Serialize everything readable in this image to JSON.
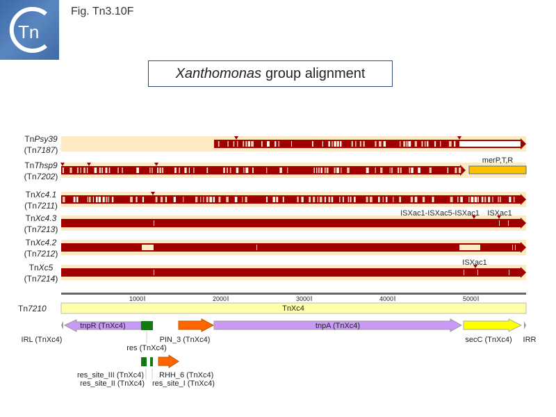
{
  "header": {
    "figure_label": "Fig. Tn3.10F",
    "logo_text": "Tn"
  },
  "title": {
    "italic": "Xanthomonas",
    "rest": "group alignment"
  },
  "tracks": [
    {
      "prefix": "Tn",
      "name": "Psy39",
      "id_prefix": "(Tn",
      "id": "7187",
      "id_suffix": ")"
    },
    {
      "prefix": "Tn",
      "name": "Thsp9",
      "id_prefix": "(Tn",
      "id": "7202",
      "id_suffix": ")"
    },
    {
      "prefix": "Tn",
      "name": "Xc4.1",
      "id_prefix": "(Tn",
      "id": "7211",
      "id_suffix": ")"
    },
    {
      "prefix": "Tn",
      "name": "Xc4.3",
      "id_prefix": "(Tn",
      "id": "7213",
      "id_suffix": ")"
    },
    {
      "prefix": "Tn",
      "name": "Xc4.2",
      "id_prefix": "(Tn",
      "id": "7212",
      "id_suffix": ")"
    },
    {
      "prefix": "Tn",
      "name": "Xc5",
      "id_prefix": "(Tn",
      "id": "7214",
      "id_suffix": ")"
    }
  ],
  "annotations": {
    "merPTR": "merP,T,R",
    "isxac_cluster": "ISXac1-ISXac5-ISXac1",
    "isxac1_a": "ISXac1",
    "isxac1_b": "ISXac1"
  },
  "ruler": {
    "ticks": [
      "1000",
      "2000",
      "3000",
      "4000",
      "5000"
    ]
  },
  "reference": {
    "prefix": "Tn",
    "id": "7210",
    "bar_label": "TnXc4"
  },
  "features": {
    "tnpR": "tnpR (TnXc4)",
    "tnpA": "tnpA (TnXc4)",
    "PIN_3": "PIN_3 (TnXc4)",
    "res": "res (TnXc4)",
    "IRL": "IRL (TnXc4)",
    "IRR": "IRR",
    "secC": "secC (TnXc4)",
    "res_site_III": "res_site_III (TnXc4)",
    "res_site_II": "res_site_II (TnXc4)",
    "RHH_6": "RHH_6 (TnXc4)",
    "res_site_I": "res_site_I (TnXc4)"
  },
  "colors": {
    "identity": "#a00000",
    "background_band": "#fde9c2",
    "reference": "#ffffa8",
    "tnp": "#c89af5",
    "res": "#137a13",
    "orange": "#ff6600",
    "secC": "#ffff00",
    "merPTR": "#ffc000"
  }
}
